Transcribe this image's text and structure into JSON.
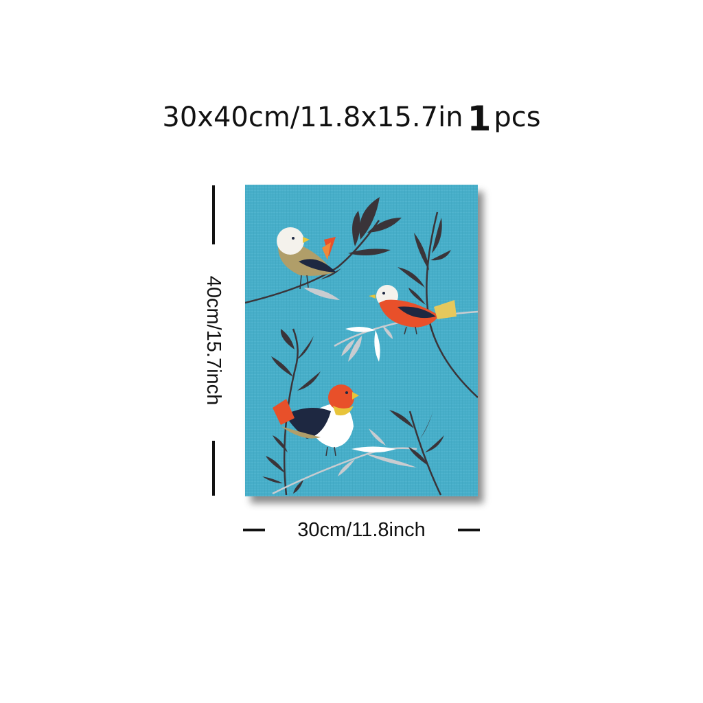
{
  "header": {
    "size_text": "30x40cm/11.8x15.7in",
    "quantity_number": "1",
    "quantity_unit": "pcs"
  },
  "artwork": {
    "background_color": "#47aec9",
    "birds": 3,
    "motif": "birds-on-branches"
  },
  "dimensions": {
    "width_label": "30cm/11.8inch",
    "height_label": "40cm/15.7inch"
  },
  "colors": {
    "text": "#111111",
    "canvas_bg": "#47aec9",
    "bird_orange": "#e8502a",
    "bird_navy": "#1e2841",
    "bird_olive": "#b09e69",
    "leaf_dark": "#3a3439",
    "leaf_light": "#c9ccd0"
  }
}
